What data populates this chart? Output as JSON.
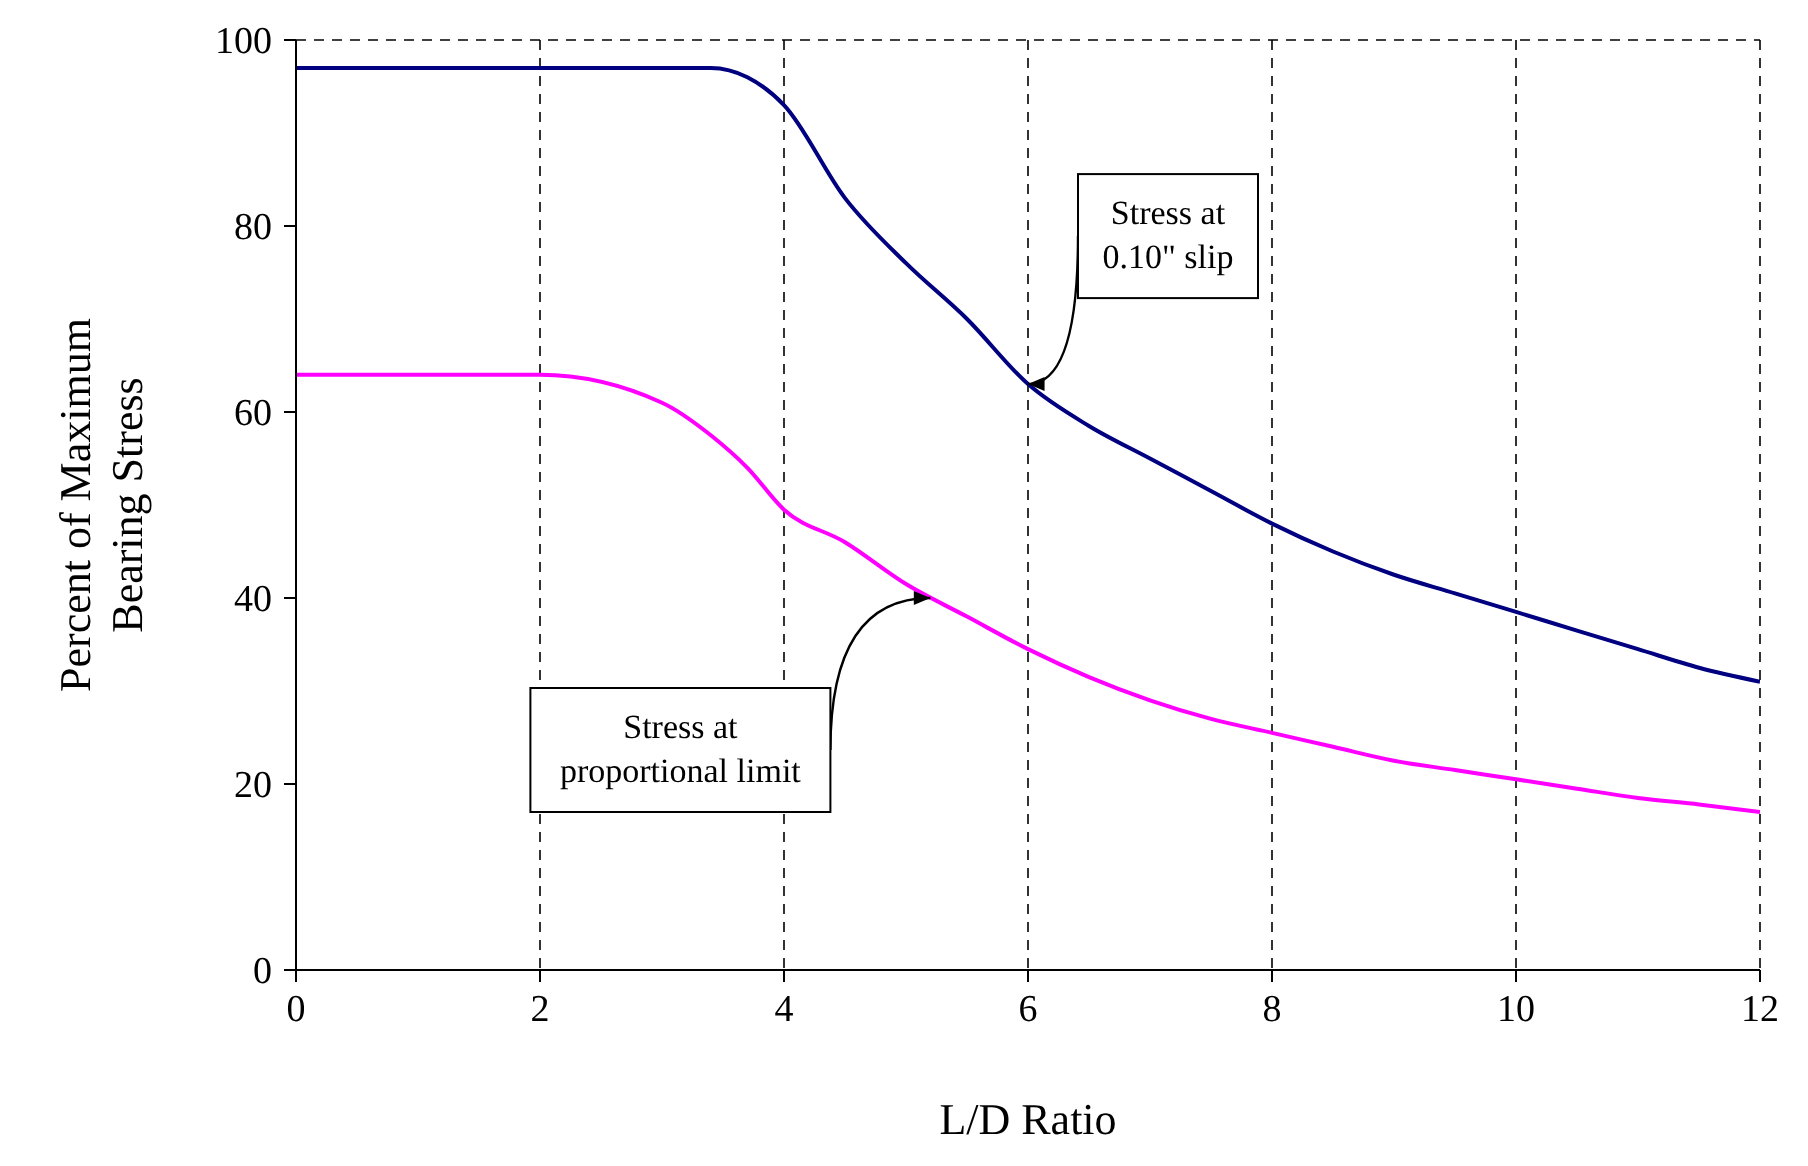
{
  "chart_data": {
    "type": "line",
    "xlabel": "L/D Ratio",
    "ylabel": "Percent of Maximum Bearing Stress",
    "x": [
      0,
      1,
      2,
      3,
      3.4,
      3.7,
      4,
      4.5,
      5,
      5.5,
      6,
      6.5,
      7,
      7.5,
      8,
      8.5,
      9,
      9.5,
      10,
      10.5,
      11,
      11.5,
      12
    ],
    "series": [
      {
        "color": "#000080",
        "values": [
          97,
          97,
          97,
          97,
          97,
          96,
          93,
          83,
          76,
          70,
          63,
          58.5,
          55,
          51.5,
          48,
          45,
          42.5,
          40.5,
          38.5,
          36.5,
          34.5,
          32.5,
          31
        ]
      },
      {
        "color": "#ff00ff",
        "values": [
          64,
          64,
          64,
          61,
          57.5,
          54,
          49.5,
          46,
          41.5,
          38,
          34.5,
          31.5,
          29,
          27,
          25.5,
          24,
          22.5,
          21.5,
          20.5,
          19.5,
          18.5,
          17.8,
          17
        ]
      }
    ],
    "xlim": [
      0,
      12
    ],
    "xticks": [
      0,
      2,
      4,
      6,
      8,
      10,
      12
    ],
    "ylim": [
      0,
      100
    ],
    "yticks": [
      0,
      20,
      40,
      60,
      80,
      100
    ],
    "grid": true,
    "annotations": [
      {
        "text": "Stress at 0.10\" slip",
        "x": 6,
        "y": 63
      },
      {
        "text": "Stress at proportional limit",
        "x": 5.2,
        "y": 40
      }
    ]
  }
}
